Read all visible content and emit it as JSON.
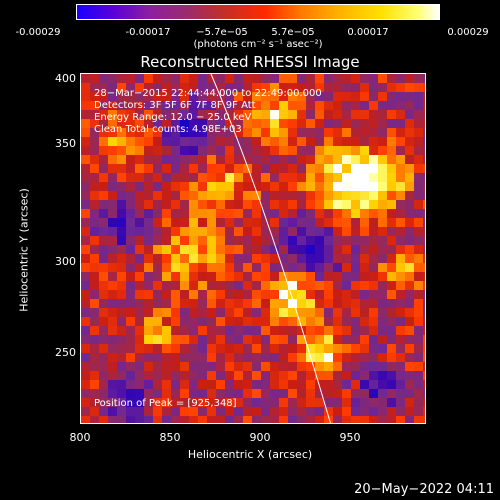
{
  "colorbar": {
    "ticks": [
      "-0.00029",
      "-0.00017",
      "−5.7e−05",
      "5.7e−05",
      "0.00017",
      "0.00029"
    ],
    "units": "(photons cm⁻² s⁻¹ asec⁻²)"
  },
  "plot": {
    "title": "Reconstructed RHESSI Image",
    "info_lines": [
      "28−Mar−2015 22:44:44.000 to 22:49:00.000",
      "Detectors: 3F 5F 6F 7F 8F 9F Att",
      "Energy Range: 12.0 − 25.0 keV",
      "Clean     Total counts: 4.98E+03"
    ],
    "peak_text": "Position of Peak = [925,348]",
    "xlabel": "Heliocentric X (arcsec)",
    "ylabel": "Heliocentric Y (arcsec)",
    "xticks": [
      "800",
      "850",
      "900",
      "950"
    ],
    "yticks": [
      "400",
      "350",
      "300",
      "250"
    ],
    "xlim": [
      800,
      990
    ],
    "ylim": [
      210,
      403
    ]
  },
  "footer": {
    "date": "20−May−2022 04:11"
  }
}
